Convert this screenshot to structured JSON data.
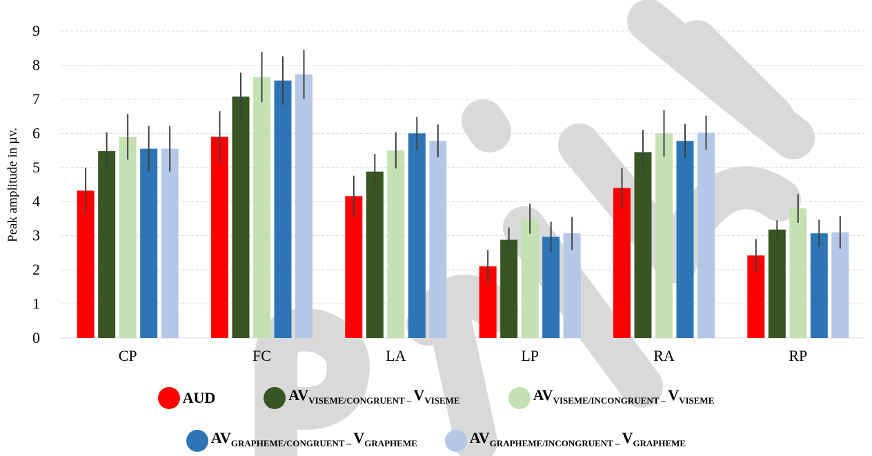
{
  "chart_data": {
    "type": "bar",
    "title": "",
    "xlabel": "",
    "ylabel": "Peak amplitude in µv.",
    "ylim": [
      0,
      9
    ],
    "yticks": [
      "0",
      "1",
      "2",
      "3",
      "4",
      "5",
      "6",
      "7",
      "8",
      "9"
    ],
    "grid": true,
    "legend_position": "bottom",
    "categories": [
      "CP",
      "FC",
      "LA",
      "LP",
      "RA",
      "RP"
    ],
    "series": [
      {
        "name": "AUD",
        "color": "#ff0000",
        "values": [
          4.32,
          5.9,
          4.16,
          2.1,
          4.4,
          2.42
        ],
        "errors": [
          0.67,
          0.75,
          0.6,
          0.48,
          0.58,
          0.48
        ]
      },
      {
        "name": "AV VISEME/CONGRUENT – V VISEME",
        "color": "#375623",
        "values": [
          5.48,
          7.08,
          4.88,
          2.88,
          5.45,
          3.18
        ],
        "errors": [
          0.55,
          0.7,
          0.52,
          0.36,
          0.65,
          0.27
        ]
      },
      {
        "name": "AV VISEME/INCONGRUENT – V VISEME",
        "color": "#c5e0b4",
        "values": [
          5.9,
          7.65,
          5.5,
          3.5,
          6.0,
          3.8
        ],
        "errors": [
          0.67,
          0.74,
          0.53,
          0.44,
          0.68,
          0.42
        ]
      },
      {
        "name": "AV GRAPHEME/CONGRUENT – V GRAPHEME",
        "color": "#2e75b6",
        "values": [
          5.55,
          7.55,
          6.0,
          2.97,
          5.78,
          3.07
        ],
        "errors": [
          0.67,
          0.71,
          0.48,
          0.44,
          0.5,
          0.4
        ]
      },
      {
        "name": "AV GRAPHEME/INCONGRUENT – V GRAPHEME",
        "color": "#b4c7e7",
        "values": [
          5.55,
          7.73,
          5.78,
          3.07,
          6.02,
          3.1
        ],
        "errors": [
          0.67,
          0.72,
          0.48,
          0.48,
          0.5,
          0.48
        ]
      }
    ]
  },
  "legend": [
    {
      "main": "AUD",
      "sub1": "",
      "mid": "",
      "sub2": ""
    },
    {
      "main": "AV",
      "sub1": "VISEME/CONGRUENT – ",
      "mid": "V",
      "sub2": "VISEME"
    },
    {
      "main": "AV",
      "sub1": "VISEME/INCONGRUENT – ",
      "mid": "V",
      "sub2": "VISEME"
    },
    {
      "main": "AV",
      "sub1": "GRAPHEME/CONGRUENT – ",
      "mid": "V",
      "sub2": "GRAPHEME"
    },
    {
      "main": "AV",
      "sub1": "GRAPHEME/INCONGRUENT – ",
      "mid": "V",
      "sub2": "GRAPHEME"
    }
  ],
  "watermark": {
    "color": "#d0d0d0"
  }
}
